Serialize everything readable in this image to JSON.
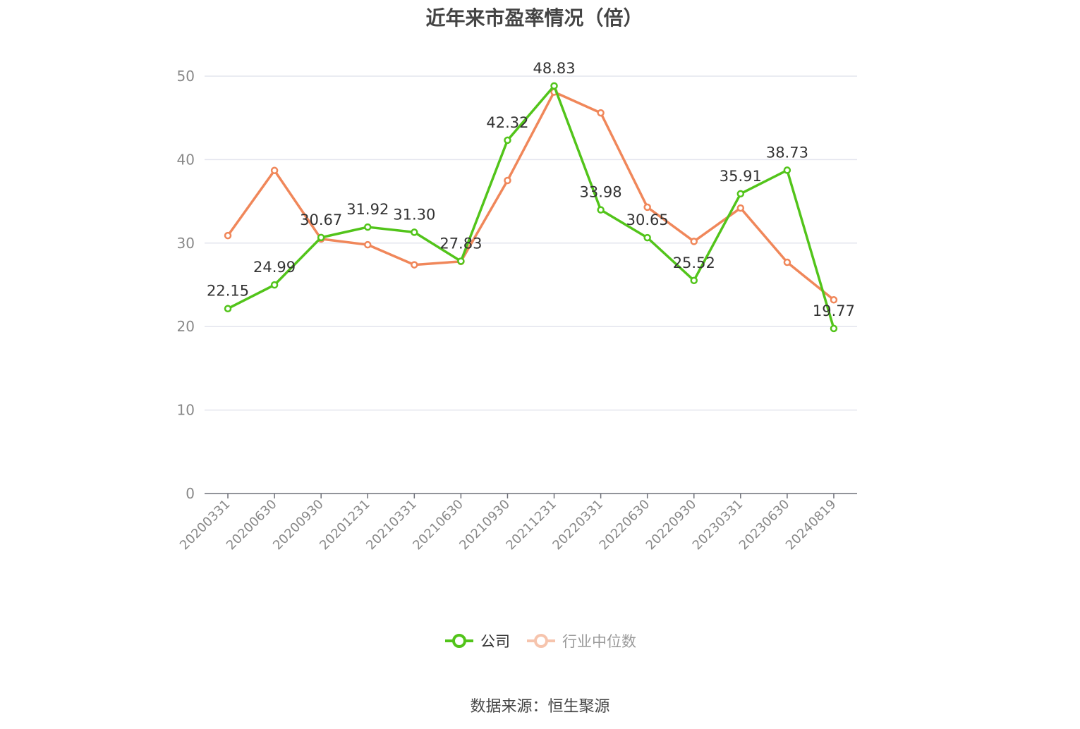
{
  "chart_data": {
    "type": "line",
    "title": "近年来市盈率情况（倍）",
    "categories": [
      "20200331",
      "20200630",
      "20200930",
      "20201231",
      "20210331",
      "20210630",
      "20210930",
      "20211231",
      "20220331",
      "20220630",
      "20220930",
      "20230331",
      "20230630",
      "20240819"
    ],
    "ylim": [
      0,
      50
    ],
    "yticks": [
      0,
      10,
      20,
      30,
      40,
      50
    ],
    "grid": true,
    "legend_position": "bottom",
    "series": [
      {
        "name": "公司",
        "color": "#52c41a",
        "values": [
          22.15,
          24.99,
          30.67,
          31.92,
          31.3,
          27.83,
          42.32,
          48.83,
          33.98,
          30.65,
          25.52,
          35.91,
          38.73,
          19.77
        ],
        "labels": [
          "22.15",
          "24.99",
          "30.67",
          "31.92",
          "31.30",
          "27.83",
          "42.32",
          "48.83",
          "33.98",
          "30.65",
          "25.52",
          "35.91",
          "38.73",
          "19.77"
        ]
      },
      {
        "name": "行业中位数",
        "color": "#f0875a",
        "values": [
          30.9,
          38.7,
          30.5,
          29.8,
          27.4,
          27.8,
          37.5,
          48.1,
          45.6,
          34.3,
          30.2,
          34.2,
          27.7,
          23.2
        ]
      }
    ]
  },
  "source_note": "数据来源：恒生聚源"
}
